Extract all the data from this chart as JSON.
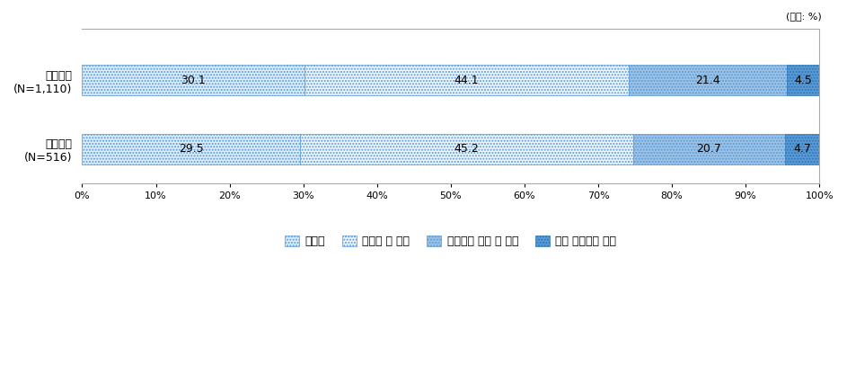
{
  "categories": [
    "체외수정\n(N=1,110)",
    "인공수정\n(N=516)"
  ],
  "series": [
    {
      "label": "이용함",
      "values": [
        30.1,
        29.5
      ],
      "color": "#DDEEFF",
      "hatch": ".....",
      "edgecolor": "#5B9BD5",
      "lw": 0.5
    },
    {
      "label": "이용할 것 같음",
      "values": [
        44.1,
        45.2
      ],
      "color": "#EEF6FF",
      "hatch": ".....",
      "edgecolor": "#5B9BD5",
      "lw": 0.5
    },
    {
      "label": "이용하지 않을 것 같음",
      "values": [
        21.4,
        20.7
      ],
      "color": "#9DC3E6",
      "hatch": ".....",
      "edgecolor": "#5B9BD5",
      "lw": 0.5
    },
    {
      "label": "전혀 이용하지 않음",
      "values": [
        4.5,
        4.7
      ],
      "color": "#5B9BD5",
      "hatch": ".....",
      "edgecolor": "#2E75B6",
      "lw": 0.5
    }
  ],
  "unit_label": "(단위: %)",
  "xlim": [
    0,
    100
  ],
  "xticks": [
    0,
    10,
    20,
    30,
    40,
    50,
    60,
    70,
    80,
    90,
    100
  ],
  "xticklabels": [
    "0%",
    "10%",
    "20%",
    "30%",
    "40%",
    "50%",
    "60%",
    "70%",
    "80%",
    "90%",
    "100%"
  ],
  "bar_height": 0.45
}
